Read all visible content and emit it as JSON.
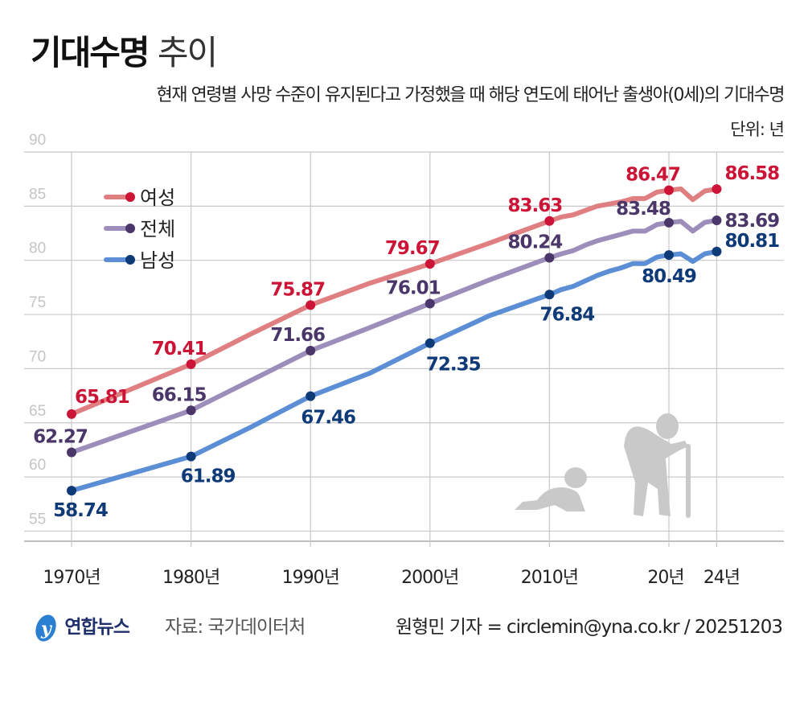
{
  "title": {
    "bold": "기대수명",
    "light": "추이"
  },
  "subtitle": "현재 연령별 사망 수준이 유지된다고 가정했을 때 해당 연도에 태어난 출생아(0세)의 기대수명",
  "unit": "단위: 년",
  "footer": {
    "logo": "연합뉴스",
    "source": "자료: 국가데이터처",
    "credit": "원형민 기자 = circlemin@yna.co.kr / 20251203"
  },
  "chart_data": {
    "type": "line",
    "title": "기대수명 추이",
    "ylim": [
      55,
      90
    ],
    "yticks": [
      90,
      85,
      80,
      75,
      70,
      65,
      60,
      55
    ],
    "xlim": [
      1970,
      2024
    ],
    "xticks": [
      {
        "year": 1970,
        "label": "1970년"
      },
      {
        "year": 1980,
        "label": "1980년"
      },
      {
        "year": 1990,
        "label": "1990년"
      },
      {
        "year": 2000,
        "label": "2000년"
      },
      {
        "year": 2010,
        "label": "2010년"
      },
      {
        "year": 2020,
        "label": "20년"
      },
      {
        "year": 2024,
        "label": "24년"
      }
    ],
    "grid": true,
    "legend": "top-left",
    "x": [
      1970,
      1980,
      1985,
      1990,
      1995,
      2000,
      2005,
      2010,
      2011,
      2012,
      2013,
      2014,
      2015,
      2016,
      2017,
      2018,
      2019,
      2020,
      2021,
      2022,
      2023,
      2024
    ],
    "series": [
      {
        "name": "여성",
        "line_color": "#e07f82",
        "dot_color": "#cc1436",
        "label_color": "#cc1436",
        "values": [
          65.81,
          70.41,
          73.2,
          75.87,
          77.9,
          79.67,
          81.6,
          83.63,
          84.0,
          84.2,
          84.6,
          85.0,
          85.2,
          85.4,
          85.7,
          85.7,
          86.3,
          86.47,
          86.6,
          85.6,
          86.4,
          86.58
        ],
        "labeled": {
          "1970": "65.81",
          "1980": "70.41",
          "1990": "75.87",
          "2000": "79.67",
          "2010": "83.63",
          "2020": "86.47",
          "2024": "86.58"
        }
      },
      {
        "name": "전체",
        "line_color": "#9d8dbb",
        "dot_color": "#4a3668",
        "label_color": "#4a3668",
        "values": [
          62.27,
          66.15,
          68.9,
          71.66,
          73.8,
          76.01,
          78.2,
          80.24,
          80.6,
          80.9,
          81.4,
          81.8,
          82.1,
          82.4,
          82.7,
          82.7,
          83.3,
          83.48,
          83.6,
          82.7,
          83.5,
          83.69
        ],
        "labeled": {
          "1970": "62.27",
          "1980": "66.15",
          "1990": "71.66",
          "2000": "76.01",
          "2010": "80.24",
          "2020": "83.48",
          "2024": "83.69"
        }
      },
      {
        "name": "남성",
        "line_color": "#5c8ed6",
        "dot_color": "#0f3a78",
        "label_color": "#0f3a78",
        "values": [
          58.74,
          61.89,
          64.6,
          67.46,
          69.6,
          72.35,
          74.9,
          76.84,
          77.3,
          77.6,
          78.1,
          78.6,
          79.0,
          79.3,
          79.7,
          79.7,
          80.3,
          80.49,
          80.6,
          79.9,
          80.6,
          80.81
        ],
        "labeled": {
          "1970": "58.74",
          "1980": "61.89",
          "1990": "67.46",
          "2000": "72.35",
          "2010": "76.84",
          "2020": "80.49",
          "2024": "80.81"
        }
      }
    ]
  }
}
